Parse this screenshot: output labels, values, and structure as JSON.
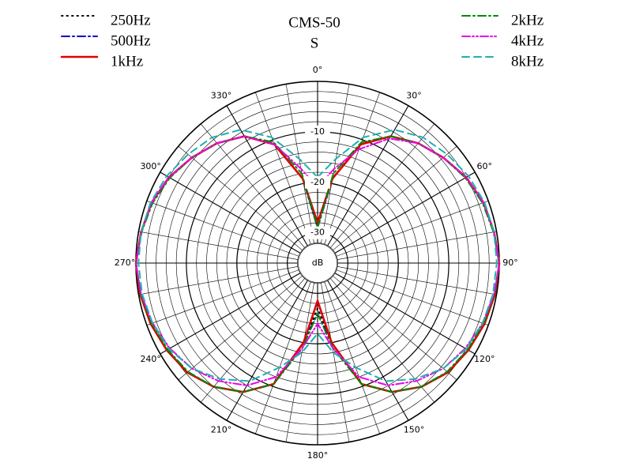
{
  "chart_data": {
    "type": "polar",
    "title": "CMS-50",
    "subtitle": "S",
    "r_label": "dB",
    "theta": [
      0,
      10,
      20,
      30,
      40,
      50,
      60,
      70,
      80,
      90,
      100,
      110,
      120,
      130,
      140,
      150,
      160,
      170,
      180,
      190,
      200,
      210,
      220,
      230,
      240,
      250,
      260,
      270,
      280,
      290,
      300,
      310,
      320,
      330,
      340,
      350
    ],
    "rlim": [
      -36,
      0
    ],
    "rticks": [
      {
        "value": -30,
        "label": "-30"
      },
      {
        "value": -20,
        "label": "-20"
      },
      {
        "value": -10,
        "label": "-10"
      }
    ],
    "rminor": [
      -34,
      -32,
      -28,
      -26,
      -24,
      -22,
      -18,
      -16,
      -14,
      -12,
      -8,
      -6,
      -4,
      -2,
      0
    ],
    "thetaticks": [
      {
        "value": 0,
        "label": "0°"
      },
      {
        "value": 30,
        "label": "30°"
      },
      {
        "value": 60,
        "label": "60°"
      },
      {
        "value": 90,
        "label": "90°"
      },
      {
        "value": 120,
        "label": "120°"
      },
      {
        "value": 150,
        "label": "150°"
      },
      {
        "value": 180,
        "label": "180°"
      },
      {
        "value": 210,
        "label": "210°"
      },
      {
        "value": 240,
        "label": "240°"
      },
      {
        "value": 270,
        "label": "270°"
      },
      {
        "value": 300,
        "label": "300°"
      },
      {
        "value": 330,
        "label": "330°"
      }
    ],
    "series": [
      {
        "name": "250Hz",
        "color": "#000000",
        "style": "dotted",
        "values": [
          -29,
          -19,
          -11,
          -7,
          -5,
          -3.5,
          -2,
          -1,
          -0.5,
          0,
          -0.3,
          -0.8,
          -1.5,
          -2.3,
          -4,
          -6.5,
          -10.5,
          -20,
          -27,
          -20,
          -10.5,
          -6.5,
          -4,
          -2.3,
          -1.5,
          -0.8,
          -0.3,
          0,
          -0.5,
          -1,
          -2,
          -3.5,
          -5,
          -7,
          -11,
          -19
        ]
      },
      {
        "name": "500Hz",
        "color": "#0000cc",
        "style": "dashdot",
        "values": [
          -29,
          -19,
          -11,
          -7,
          -5,
          -3.5,
          -2,
          -1,
          -0.5,
          0,
          -0.3,
          -0.8,
          -1.5,
          -2.3,
          -4,
          -6.5,
          -10.5,
          -20,
          -26,
          -20,
          -10.5,
          -6.5,
          -4,
          -2.3,
          -1.5,
          -0.8,
          -0.3,
          0,
          -0.5,
          -1,
          -2,
          -3.5,
          -5,
          -7,
          -11,
          -19
        ]
      },
      {
        "name": "1kHz",
        "color": "#e00000",
        "style": "solid",
        "values": [
          -28,
          -19,
          -11,
          -7,
          -5,
          -3.5,
          -2,
          -1,
          -0.5,
          0,
          -0.3,
          -0.8,
          -1.5,
          -2.3,
          -4,
          -6.5,
          -10.5,
          -20,
          -28.5,
          -20,
          -10.5,
          -6.5,
          -4,
          -2.3,
          -1.5,
          -0.8,
          -0.3,
          0,
          -0.5,
          -1,
          -2,
          -3.5,
          -5,
          -7,
          -11,
          -19
        ]
      },
      {
        "name": "2kHz",
        "color": "#008800",
        "style": "dashdot",
        "values": [
          -29,
          -18,
          -10.5,
          -7,
          -5,
          -3.5,
          -2.2,
          -1.2,
          -0.6,
          0,
          -0.4,
          -1,
          -1.7,
          -2.5,
          -4,
          -6.5,
          -10.5,
          -19,
          -26,
          -19,
          -10.5,
          -6.5,
          -4,
          -2.5,
          -1.7,
          -1,
          -0.4,
          0,
          -0.6,
          -1.2,
          -2.2,
          -3.5,
          -5,
          -7,
          -10.5,
          -18
        ]
      },
      {
        "name": "4kHz",
        "color": "#ee00ee",
        "style": "dashdotdot",
        "values": [
          -21,
          -17,
          -12,
          -7.5,
          -5,
          -3.5,
          -2,
          -1,
          -0.5,
          0,
          -0.5,
          -1.2,
          -2.2,
          -3.5,
          -5.5,
          -8,
          -12,
          -19,
          -24,
          -19,
          -12,
          -8,
          -5.5,
          -3.5,
          -2.2,
          -1.2,
          -0.5,
          0,
          -0.5,
          -1,
          -2,
          -3.5,
          -5,
          -7,
          -11,
          -17
        ]
      },
      {
        "name": "8kHz",
        "color": "#20b0b0",
        "style": "dashed",
        "values": [
          -19,
          -15,
          -9.5,
          -5.5,
          -3.5,
          -2.5,
          -1.5,
          -0.8,
          -0.5,
          -0.5,
          -0.7,
          -1.2,
          -2,
          -3.5,
          -6,
          -9,
          -14,
          -18,
          -22,
          -18,
          -14,
          -9,
          -6,
          -3.5,
          -2,
          -1.2,
          -0.7,
          -0.5,
          -0.5,
          -0.8,
          -1.5,
          -2.5,
          -3.5,
          -5.5,
          -9.5,
          -15
        ]
      }
    ]
  }
}
